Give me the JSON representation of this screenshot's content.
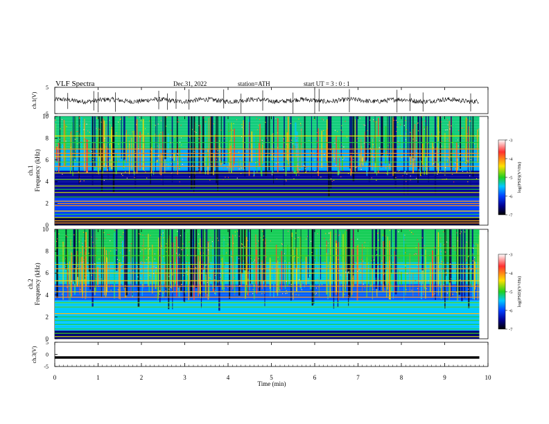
{
  "header": {
    "title": "VLF  Spectra",
    "date": "Dec.31, 2022",
    "station": "station=ATH",
    "start": "start  UT  =    3  : 0   : 1"
  },
  "colorbar": {
    "label": "log(PSD)(V²/Hz)",
    "ticks": [
      "-3",
      "-4",
      "-5",
      "-6",
      "-7"
    ],
    "colors": [
      "#ffffff",
      "#ff2020",
      "#ffe000",
      "#20d020",
      "#00c0ff",
      "#0040ff",
      "#000080",
      "#000000"
    ]
  },
  "chart_data": [
    {
      "type": "line",
      "panel": "ch1-waveform",
      "ylabel": "ch.1(V)",
      "ylim": [
        -5,
        5
      ],
      "yticks": [
        "5",
        "-5"
      ],
      "xlim": [
        0,
        10
      ],
      "baseline": 0,
      "spike_times": [
        0.3,
        0.9,
        1.0,
        1.4,
        2.4,
        2.6,
        2.8,
        3.1,
        3.9,
        4.3,
        4.8,
        5.5,
        6.0,
        6.1,
        6.8,
        7.9,
        8.2,
        8.5,
        9.6
      ]
    },
    {
      "type": "heatmap",
      "panel": "ch1-spectrogram",
      "ylabel": "ch.1\nFrequency (kHz)",
      "ylim": [
        0,
        10
      ],
      "yticks": [
        "10",
        "8",
        "6",
        "4",
        "2",
        "0"
      ],
      "xlim": [
        0,
        9.8
      ],
      "colorbar_range": [
        -7,
        -3
      ],
      "lines_khz": [
        0.2,
        0.4,
        0.7,
        1.0,
        1.3,
        1.8,
        2.0,
        2.2,
        2.6,
        3.0,
        3.3,
        3.6,
        4.2,
        4.8,
        5.4,
        5.8,
        6.3,
        6.6,
        7.0,
        7.6,
        8.2
      ]
    },
    {
      "type": "heatmap",
      "panel": "ch2-spectrogram",
      "ylabel": "ch.2\nFrequency (kHz)",
      "ylim": [
        0,
        10
      ],
      "yticks": [
        "10",
        "8",
        "6",
        "4",
        "2",
        "0"
      ],
      "xlim": [
        0,
        9.8
      ],
      "colorbar_range": [
        -7,
        -3
      ],
      "lines_khz": [
        0.2,
        0.5,
        0.9,
        1.3,
        1.7,
        2.0,
        2.3,
        2.9,
        3.3,
        3.8,
        4.3,
        4.8,
        5.3,
        6.0,
        6.4,
        6.8,
        7.6,
        8.3
      ]
    },
    {
      "type": "line",
      "panel": "ch3-waveform",
      "ylabel": "ch.3(V)",
      "ylim": [
        -5,
        5
      ],
      "yticks": [
        "5",
        "0",
        "-5"
      ],
      "xlim": [
        0,
        10
      ],
      "level": -1.3
    }
  ],
  "xaxis": {
    "label": "Time  (min)",
    "ticks": [
      "0",
      "1",
      "2",
      "3",
      "4",
      "5",
      "6",
      "7",
      "8",
      "9",
      "10"
    ]
  }
}
